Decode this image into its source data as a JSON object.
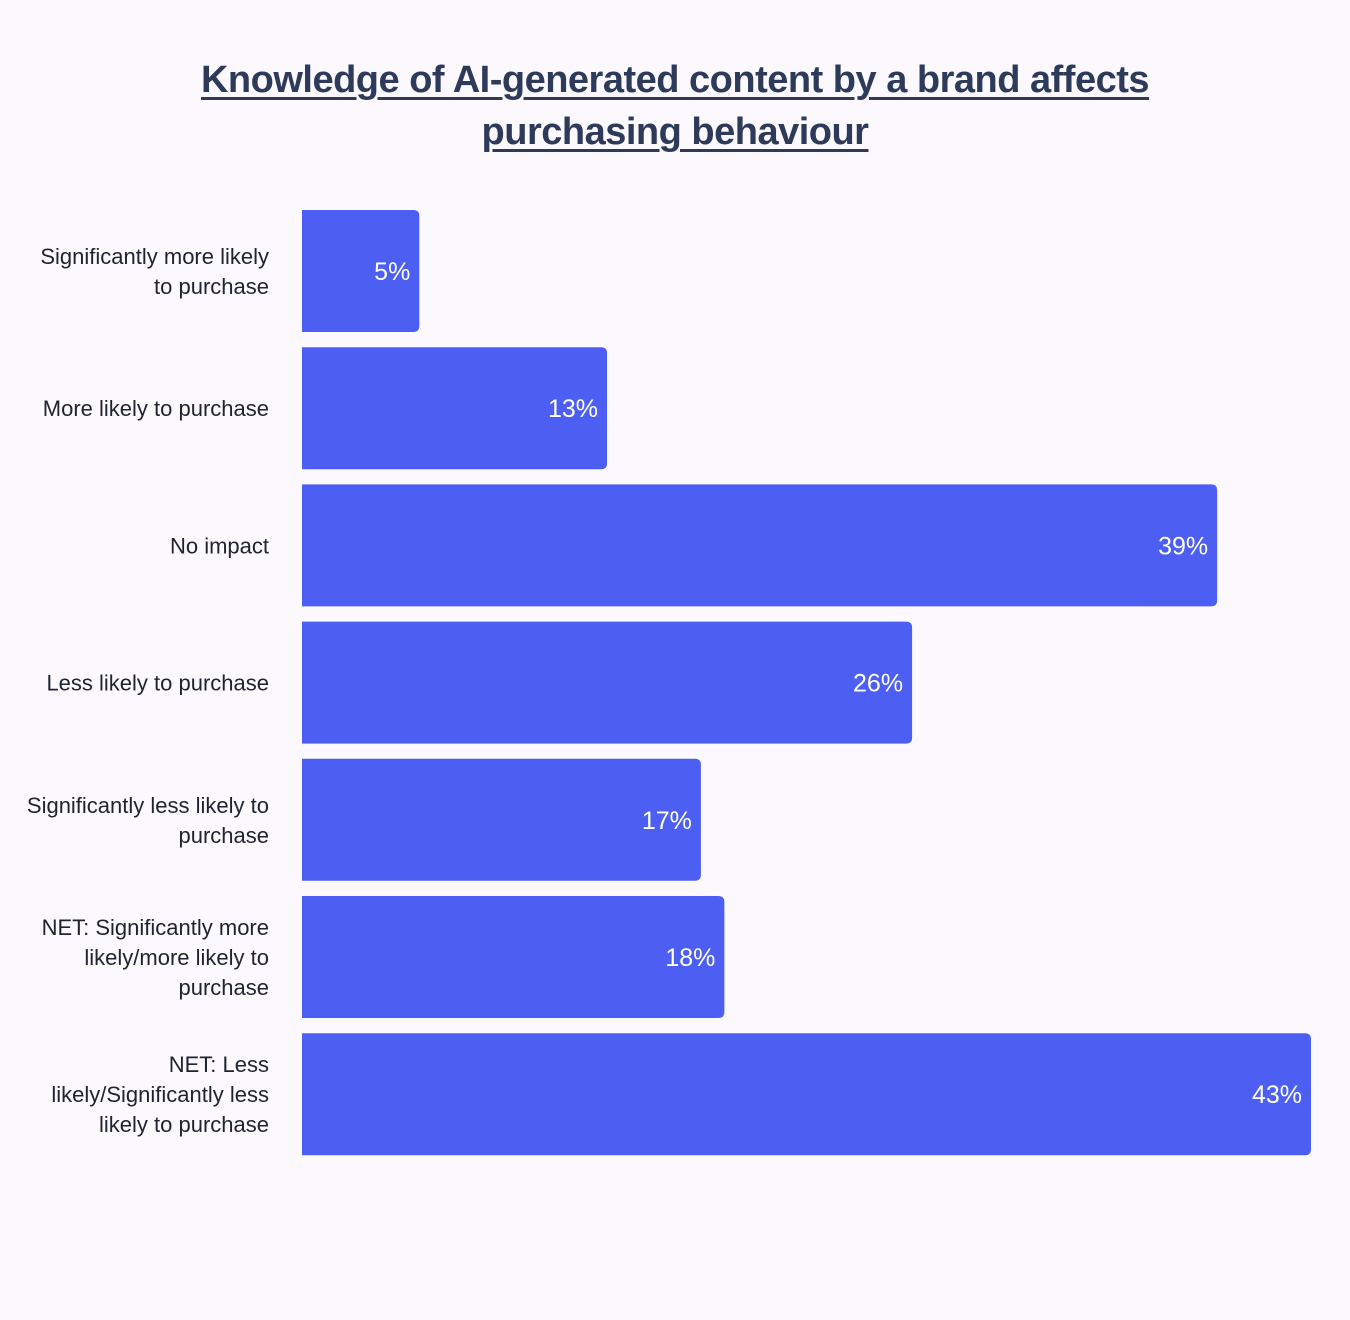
{
  "chart_data": {
    "type": "bar",
    "orientation": "horizontal",
    "title": "Knowledge of AI-generated content by a brand affects purchasing behaviour",
    "categories": [
      "Significantly more likely to purchase",
      "More likely to purchase",
      "No impact",
      "Less likely to purchase",
      "Significantly less likely to purchase",
      "NET: Significantly more likely/more likely to purchase",
      "NET: Less likely/Significantly less likely to purchase"
    ],
    "category_lines": [
      [
        "Significantly more likely",
        "to purchase"
      ],
      [
        "More likely to purchase"
      ],
      [
        "No impact"
      ],
      [
        "Less likely to purchase"
      ],
      [
        "Significantly less likely to",
        "purchase"
      ],
      [
        "NET: Significantly more",
        "likely/more likely to",
        "purchase"
      ],
      [
        "NET: Less",
        "likely/Significantly less",
        "likely to purchase"
      ]
    ],
    "values": [
      5,
      13,
      39,
      26,
      17,
      18,
      43
    ],
    "value_labels": [
      "5%",
      "13%",
      "39%",
      "26%",
      "17%",
      "18%",
      "43%"
    ],
    "unit": "%",
    "xlim": [
      0,
      43
    ],
    "grid": false,
    "legend": "none",
    "bar_color": "#4c5ff2",
    "label_color": "#ffffff"
  }
}
